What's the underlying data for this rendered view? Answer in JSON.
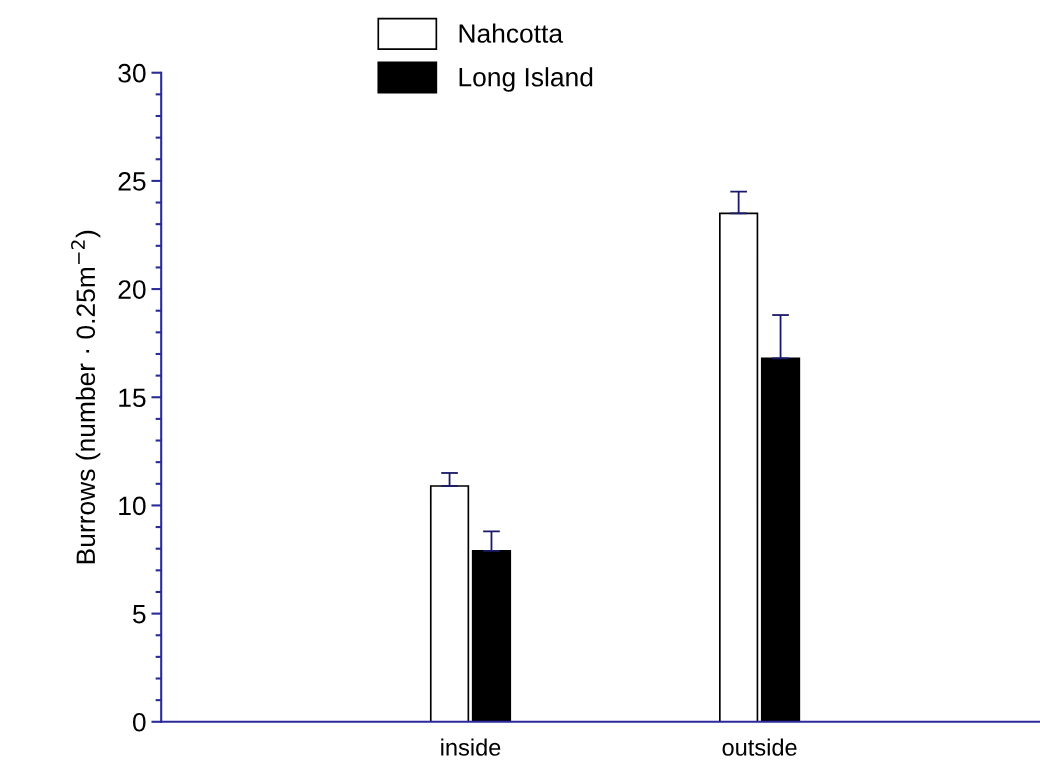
{
  "chart_data": {
    "type": "bar",
    "ylabel": "Burrows (number · 0.25m$^{−2}$)",
    "categories": [
      "inside",
      "outside"
    ],
    "series": [
      {
        "name": "Nahcotta",
        "color": "#ffffff",
        "values": [
          10.9,
          23.5
        ],
        "errors": [
          [
            10.9,
            11.5
          ],
          [
            23.5,
            24.5
          ]
        ]
      },
      {
        "name": "Long Island",
        "color": "#000000",
        "values": [
          7.9,
          16.8
        ],
        "errors": [
          [
            7.9,
            8.8
          ],
          [
            16.8,
            18.8
          ]
        ]
      }
    ],
    "ylim": [
      0,
      30
    ],
    "yticks": [
      0,
      5,
      10,
      15,
      20,
      25,
      30
    ],
    "grid": false,
    "legend": "top"
  }
}
